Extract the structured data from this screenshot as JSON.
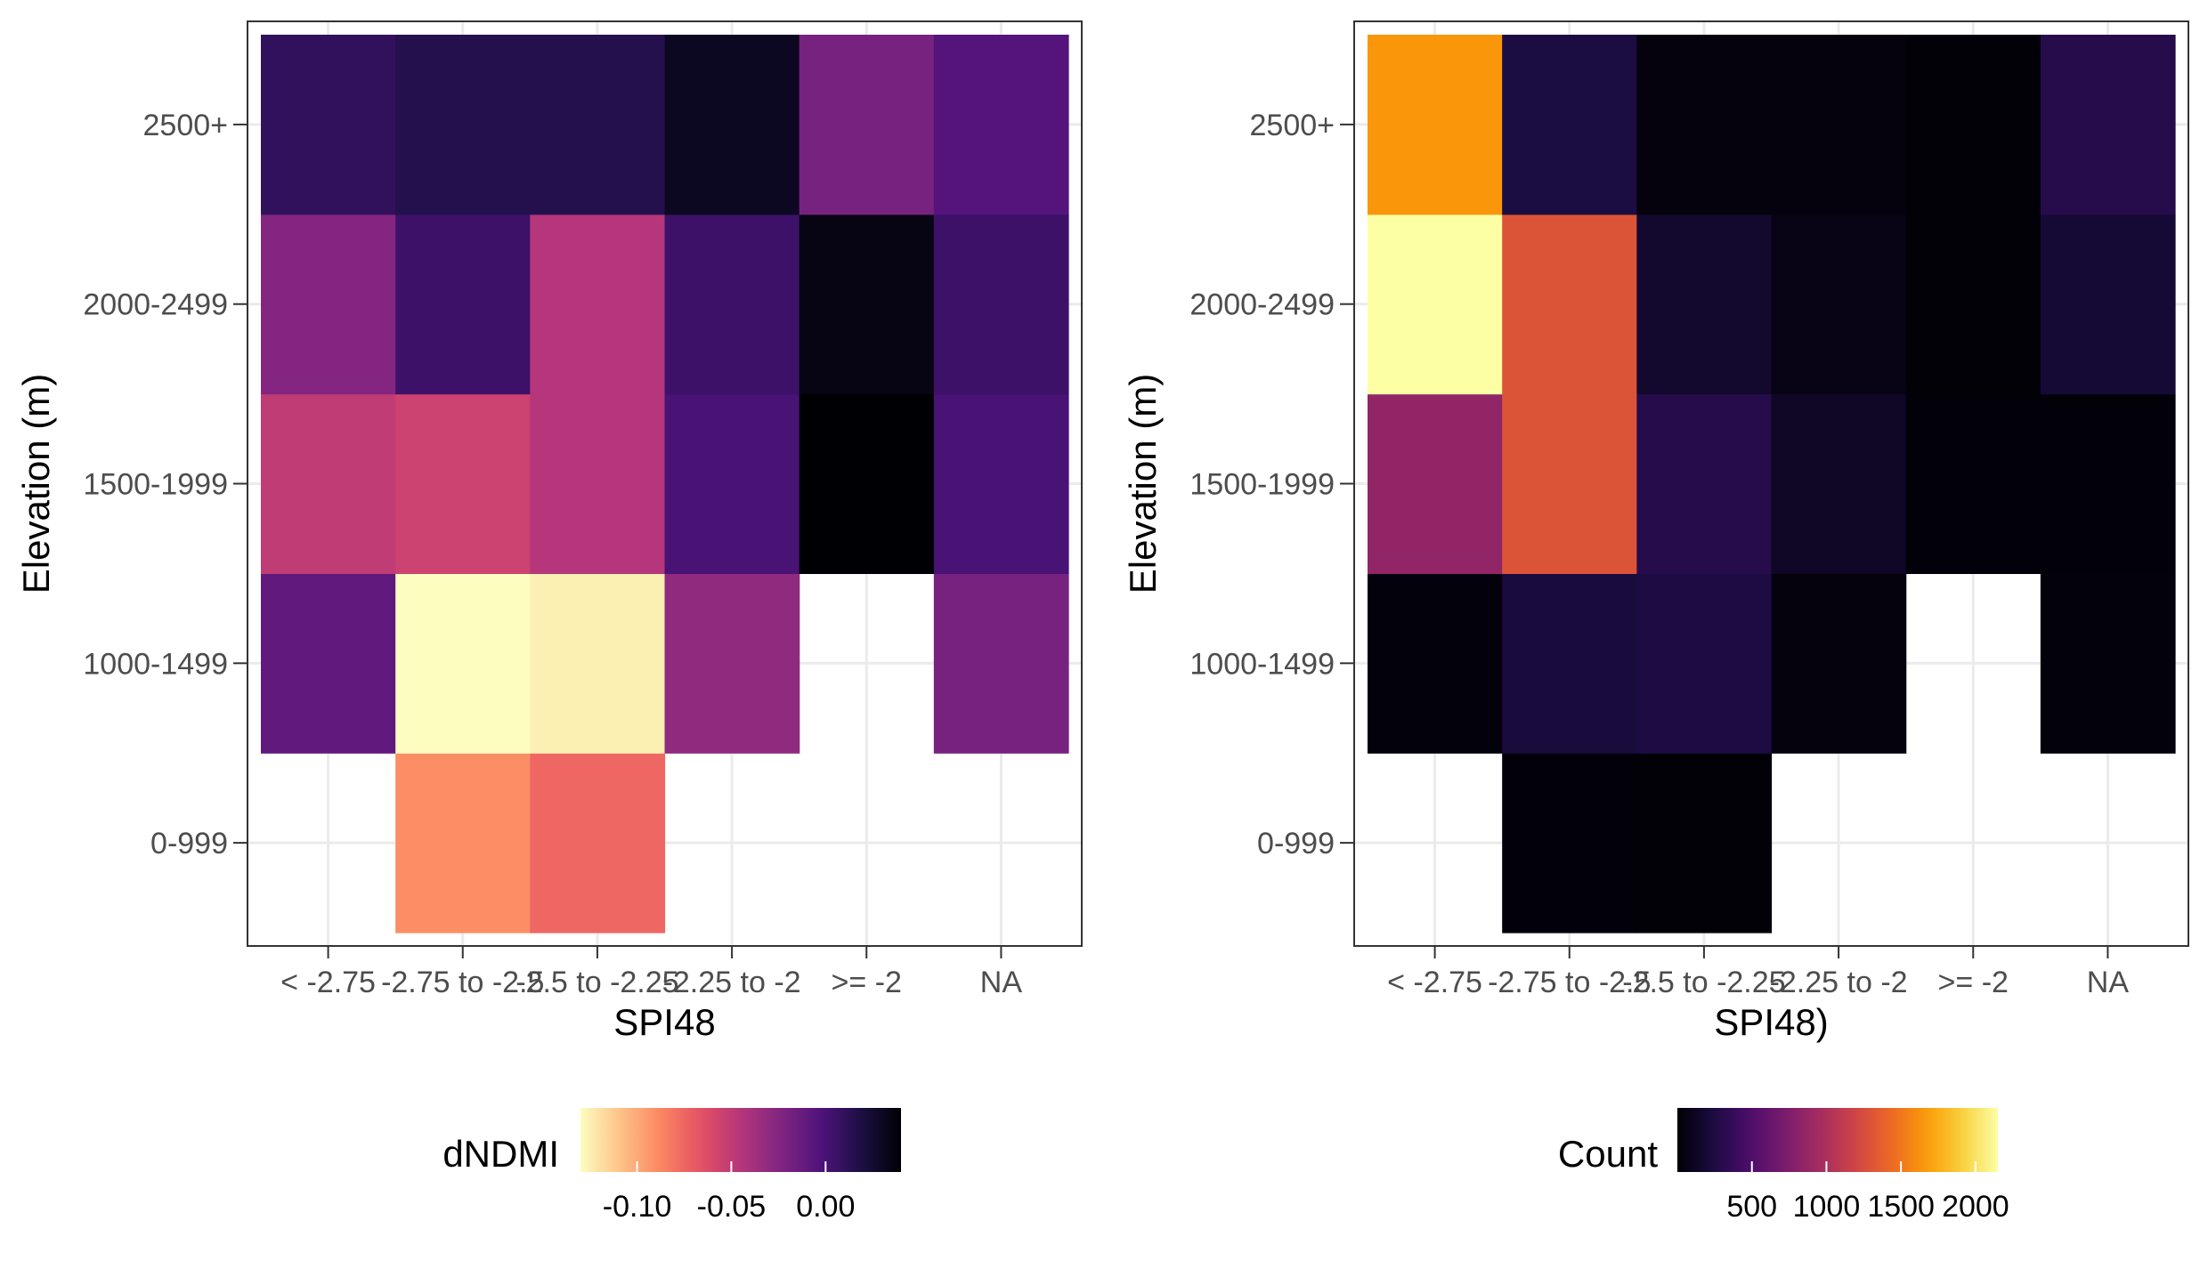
{
  "chart_data": [
    {
      "type": "heatmap",
      "xlabel": "SPI48",
      "ylabel": "Elevation (m)",
      "x_categories": [
        "< -2.75",
        "-2.75 to -2.5",
        "-2.5 to -2.25",
        "-2.25 to -2",
        ">= -2",
        "NA"
      ],
      "y_categories": [
        "0-999",
        "1000-1499",
        "1500-1999",
        "2000-2499",
        "2500+"
      ],
      "grid": true,
      "values": [
        [
          null,
          -0.09,
          -0.075,
          null,
          null,
          null
        ],
        [
          -0.01,
          -0.13,
          -0.125,
          -0.03,
          null,
          -0.02
        ],
        [
          -0.05,
          -0.055,
          -0.045,
          0.0,
          0.04,
          0.0
        ],
        [
          -0.025,
          0.005,
          -0.045,
          0.005,
          0.035,
          0.005
        ],
        [
          0.01,
          0.015,
          0.015,
          0.03,
          -0.02,
          -0.005
        ]
      ],
      "legend": {
        "title": "dNDMI",
        "position": "bottom",
        "ticks": [
          -0.1,
          -0.05,
          0.0
        ],
        "tick_labels": [
          "-0.10",
          "-0.05",
          "0.00"
        ],
        "range": [
          -0.13,
          0.04
        ],
        "palette": "magma",
        "reversed": true
      }
    },
    {
      "type": "heatmap",
      "xlabel": "SPI48)",
      "ylabel": "Elevation (m)",
      "x_categories": [
        "< -2.75",
        "-2.75 to -2.5",
        "-2.5 to -2.25",
        "-2.25 to -2",
        ">= -2",
        "NA"
      ],
      "y_categories": [
        "0-999",
        "1000-1499",
        "1500-1999",
        "2000-2499",
        "2500+"
      ],
      "grid": true,
      "values": [
        [
          null,
          20,
          15,
          null,
          null,
          null
        ],
        [
          30,
          220,
          250,
          40,
          null,
          25
        ],
        [
          850,
          1300,
          300,
          130,
          20,
          20
        ],
        [
          2150,
          1300,
          170,
          70,
          15,
          190
        ],
        [
          1650,
          240,
          40,
          40,
          10,
          300
        ]
      ],
      "legend": {
        "title": "Count",
        "position": "bottom",
        "ticks": [
          500,
          1000,
          1500,
          2000
        ],
        "tick_labels": [
          "500",
          "1000",
          "1500",
          "2000"
        ],
        "range": [
          0,
          2150
        ],
        "palette": "inferno",
        "reversed": false
      }
    }
  ]
}
